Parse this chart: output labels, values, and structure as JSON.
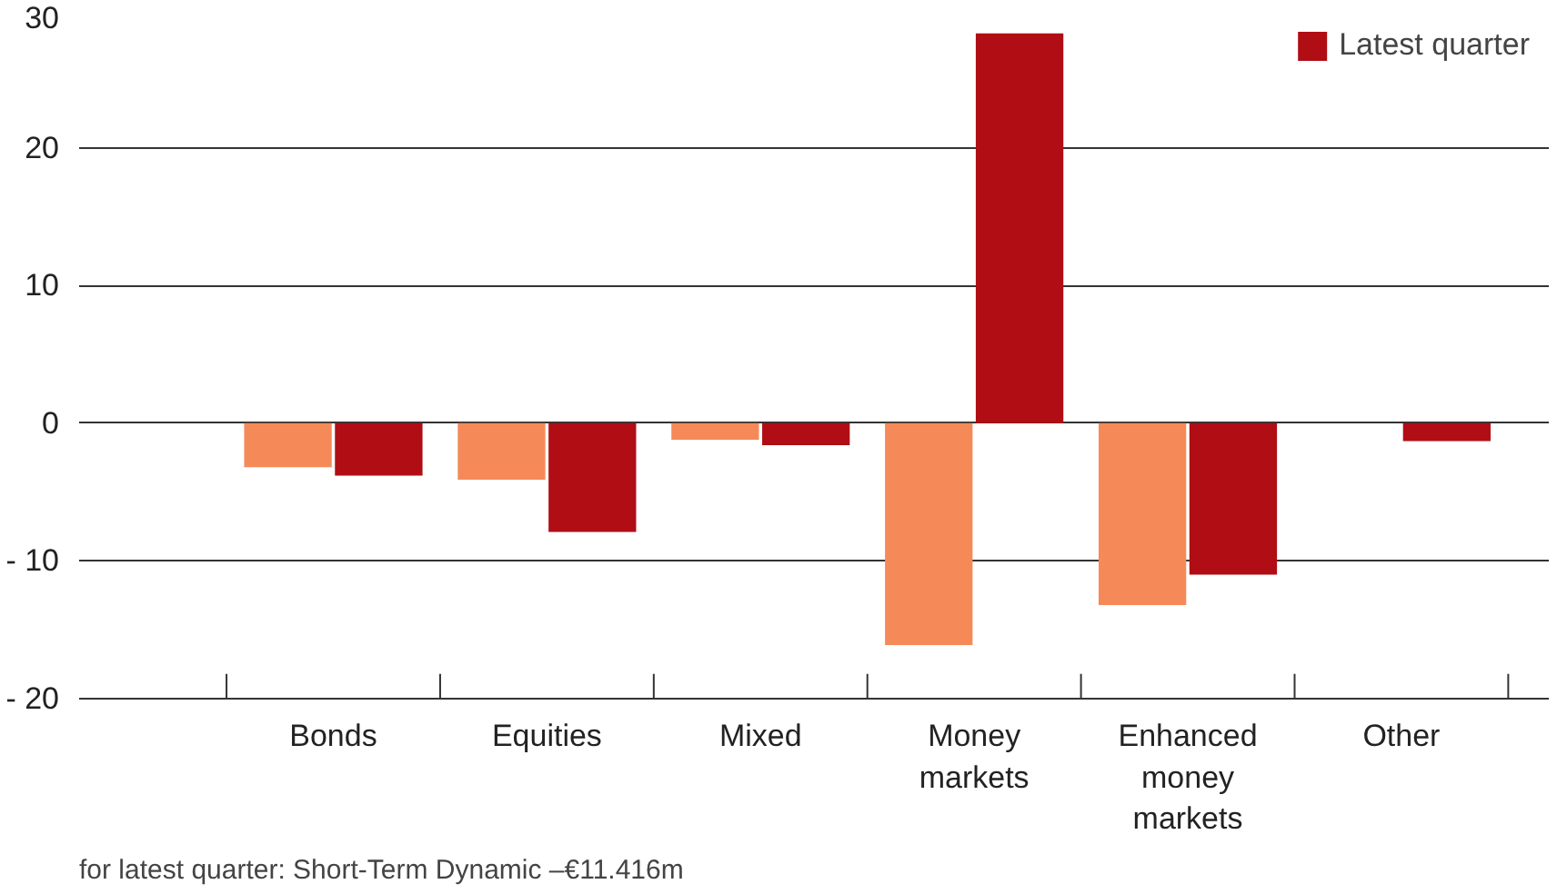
{
  "chart_data": {
    "type": "bar",
    "categories": [
      "Bonds",
      "Equities",
      "Mixed",
      "Money markets",
      "Enhanced money markets",
      "Other"
    ],
    "series": [
      {
        "color": "#f58a58",
        "values": [
          -3.2,
          -4.1,
          -1.2,
          -16.1,
          -13.2,
          null
        ]
      },
      {
        "name": "Latest quarter",
        "color": "#b00d15",
        "values": [
          -3.8,
          -7.9,
          -1.6,
          28.3,
          -11.0,
          -1.3
        ]
      }
    ],
    "ylim": [
      -20,
      30
    ],
    "yticks": [
      {
        "value": -20,
        "label": "- 20"
      },
      {
        "value": -10,
        "label": "- 10"
      },
      0,
      10,
      20,
      30
    ],
    "grid": "y",
    "legend": "top right",
    "annotations": [
      "for latest quarter: Short-Term Dynamic –€11.416m"
    ]
  }
}
